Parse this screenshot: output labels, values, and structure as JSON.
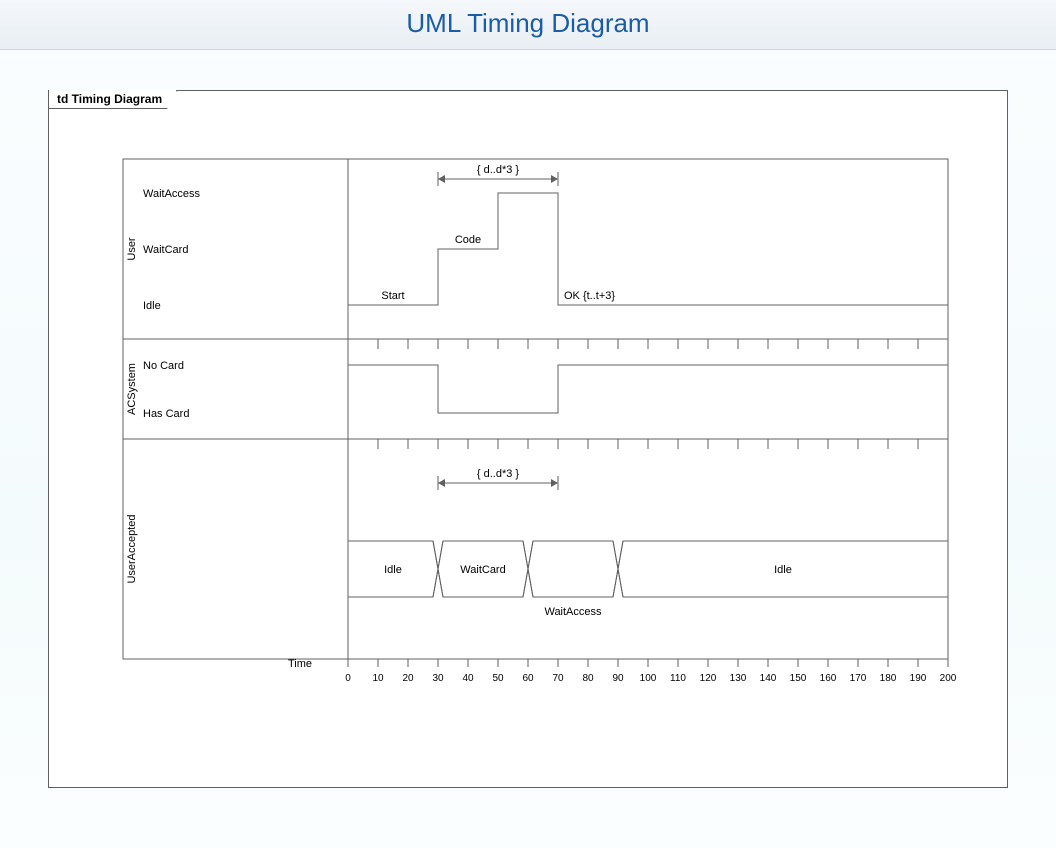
{
  "header": {
    "title": "UML Timing Diagram"
  },
  "frame": {
    "label": "td Timing Diagram"
  },
  "colors": {
    "stroke": "#606060",
    "title": "#1a5da6",
    "header_bg_top": "#f5f8fb",
    "header_bg_bottom": "#e8eef3",
    "page_bg": "#f8fcfd",
    "panel_bg": "#ffffff"
  },
  "typography": {
    "title_fontsize": 26,
    "label_fontsize": 11,
    "axis_fontsize": 10
  },
  "time_axis": {
    "label": "Time",
    "min": 0,
    "max": 200,
    "step": 10,
    "ticks": [
      0,
      10,
      20,
      30,
      40,
      50,
      60,
      70,
      80,
      90,
      100,
      110,
      120,
      130,
      140,
      150,
      160,
      170,
      180,
      190,
      200
    ]
  },
  "lanes": {
    "user": {
      "name": "User",
      "states": [
        "WaitAccess",
        "WaitCard",
        "Idle"
      ],
      "segments": [
        {
          "from": 0,
          "to": 30,
          "state": "Idle"
        },
        {
          "from": 30,
          "to": 50,
          "state": "WaitCard"
        },
        {
          "from": 50,
          "to": 70,
          "state": "WaitAccess"
        },
        {
          "from": 70,
          "to": 200,
          "state": "Idle"
        }
      ],
      "duration_constraint": {
        "from": 30,
        "to": 70,
        "text": "{ d..d*3 }"
      },
      "event_labels": {
        "start": "Start",
        "code": "Code",
        "ok": "OK {t..t+3}"
      }
    },
    "acsystem": {
      "name": "ACSystem",
      "states": [
        "No Card",
        "Has Card"
      ],
      "segments": [
        {
          "from": 0,
          "to": 30,
          "state": "No Card"
        },
        {
          "from": 30,
          "to": 70,
          "state": "Has Card"
        },
        {
          "from": 70,
          "to": 200,
          "state": "No Card"
        }
      ]
    },
    "user_accepted": {
      "name": "UserAccepted",
      "type": "compact",
      "duration_constraint": {
        "from": 30,
        "to": 70,
        "text": "{ d..d*3 }"
      },
      "states": [
        {
          "from": 0,
          "to": 30,
          "label": "Idle"
        },
        {
          "from": 30,
          "to": 60,
          "label": "WaitCard"
        },
        {
          "from": 60,
          "to": 90,
          "label": "WaitAccess",
          "label_below": true
        },
        {
          "from": 90,
          "to": 200,
          "label": "Idle"
        }
      ],
      "transition_width": 10
    }
  }
}
